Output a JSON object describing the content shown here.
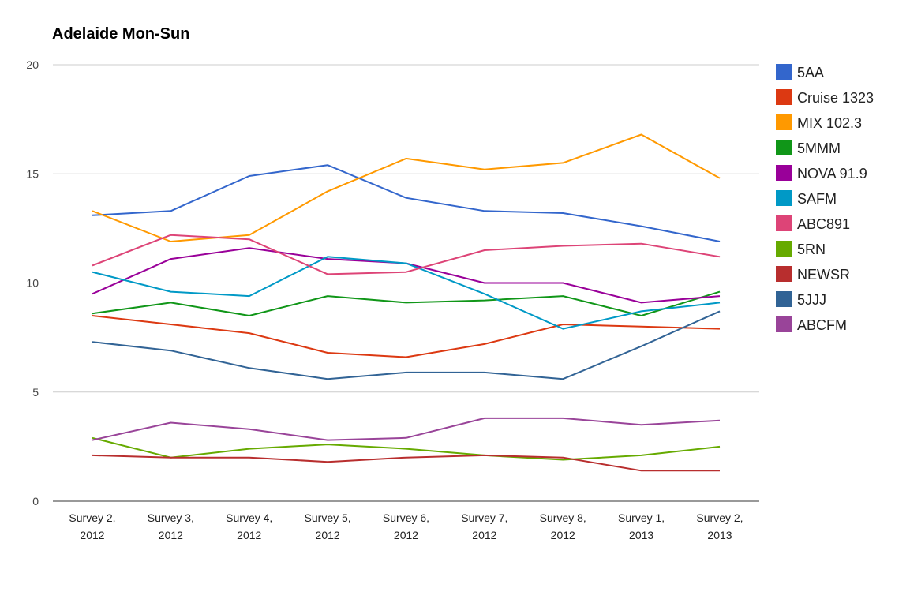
{
  "chart_data": {
    "type": "line",
    "title": "Adelaide Mon-Sun",
    "xlabel": "",
    "ylabel": "",
    "ylim": [
      0,
      20
    ],
    "yticks": [
      0,
      5,
      10,
      15,
      20
    ],
    "grid": true,
    "legend_position": "right",
    "categories": [
      [
        "Survey 2,",
        "2012"
      ],
      [
        "Survey 3,",
        "2012"
      ],
      [
        "Survey 4,",
        "2012"
      ],
      [
        "Survey 5,",
        "2012"
      ],
      [
        "Survey 6,",
        "2012"
      ],
      [
        "Survey 7,",
        "2012"
      ],
      [
        "Survey 8,",
        "2012"
      ],
      [
        "Survey 1,",
        "2013"
      ],
      [
        "Survey 2,",
        "2013"
      ]
    ],
    "series": [
      {
        "name": "5AA",
        "color": "#3366cc",
        "values": [
          13.1,
          13.3,
          14.9,
          15.4,
          13.9,
          13.3,
          13.2,
          12.6,
          11.9
        ]
      },
      {
        "name": "Cruise 1323",
        "color": "#dc3912",
        "values": [
          8.5,
          8.1,
          7.7,
          6.8,
          6.6,
          7.2,
          8.1,
          8.0,
          7.9
        ]
      },
      {
        "name": "MIX 102.3",
        "color": "#ff9900",
        "values": [
          13.3,
          11.9,
          12.2,
          14.2,
          15.7,
          15.2,
          15.5,
          16.8,
          14.8
        ]
      },
      {
        "name": "5MMM",
        "color": "#109618",
        "values": [
          8.6,
          9.1,
          8.5,
          9.4,
          9.1,
          9.2,
          9.4,
          8.5,
          9.6
        ]
      },
      {
        "name": "NOVA 91.9",
        "color": "#990099",
        "values": [
          9.5,
          11.1,
          11.6,
          11.1,
          10.9,
          10.0,
          10.0,
          9.1,
          9.4
        ]
      },
      {
        "name": "SAFM",
        "color": "#0099c6",
        "values": [
          10.5,
          9.6,
          9.4,
          11.2,
          10.9,
          9.5,
          7.9,
          8.7,
          9.1
        ]
      },
      {
        "name": "ABC891",
        "color": "#dd4477",
        "values": [
          10.8,
          12.2,
          12.0,
          10.4,
          10.5,
          11.5,
          11.7,
          11.8,
          11.2
        ]
      },
      {
        "name": "5RN",
        "color": "#66aa00",
        "values": [
          2.9,
          2.0,
          2.4,
          2.6,
          2.4,
          2.1,
          1.9,
          2.1,
          2.5
        ]
      },
      {
        "name": "NEWSR",
        "color": "#b82e2e",
        "values": [
          2.1,
          2.0,
          2.0,
          1.8,
          2.0,
          2.1,
          2.0,
          1.4,
          1.4
        ]
      },
      {
        "name": "5JJJ",
        "color": "#316395",
        "values": [
          7.3,
          6.9,
          6.1,
          5.6,
          5.9,
          5.9,
          5.6,
          7.1,
          8.7
        ]
      },
      {
        "name": "ABCFM",
        "color": "#994499",
        "values": [
          2.8,
          3.6,
          3.3,
          2.8,
          2.9,
          3.8,
          3.8,
          3.5,
          3.7
        ]
      }
    ]
  }
}
